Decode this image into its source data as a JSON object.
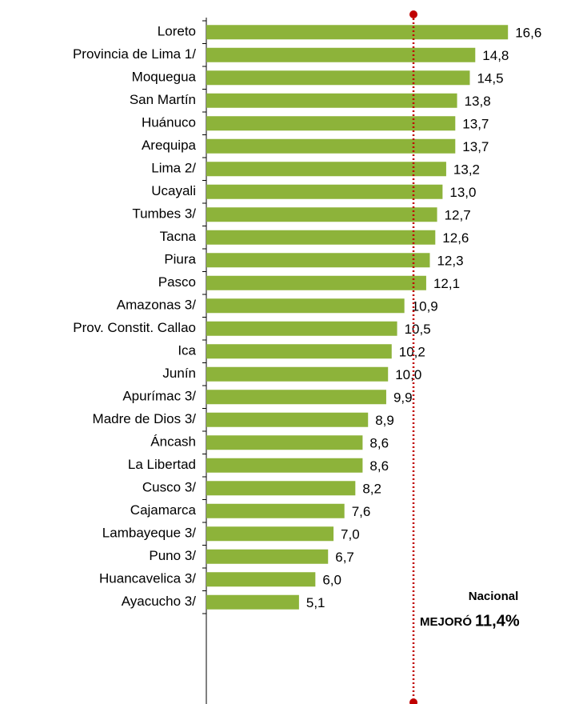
{
  "chart_data": {
    "type": "bar",
    "orientation": "horizontal",
    "categories": [
      "Loreto",
      "Provincia de Lima 1/",
      "Moquegua",
      "San Martín",
      "Huánuco",
      "Arequipa",
      "Lima 2/",
      "Ucayali",
      "Tumbes 3/",
      "Tacna",
      "Piura",
      "Pasco",
      "Amazonas 3/",
      "Prov. Constit. Callao",
      "Ica",
      "Junín",
      "Apurímac 3/",
      "Madre de Dios 3/",
      "Áncash",
      "La Libertad",
      "Cusco 3/",
      "Cajamarca",
      "Lambayeque 3/",
      "Puno 3/",
      "Huancavelica 3/",
      "Ayacucho 3/"
    ],
    "values": [
      16.6,
      14.8,
      14.5,
      13.8,
      13.7,
      13.7,
      13.2,
      13.0,
      12.7,
      12.6,
      12.3,
      12.1,
      10.9,
      10.5,
      10.2,
      10.0,
      9.9,
      8.9,
      8.6,
      8.6,
      8.2,
      7.6,
      7.0,
      6.7,
      6.0,
      5.1
    ],
    "value_labels": [
      "16,6",
      "14,8",
      "14,5",
      "13,8",
      "13,7",
      "13,7",
      "13,2",
      "13,0",
      "12,7",
      "12,6",
      "12,3",
      "12,1",
      "10,9",
      "10,5",
      "10,2",
      "10,0",
      "9,9",
      "8,9",
      "8,6",
      "8,6",
      "8,2",
      "7,6",
      "7,0",
      "6,7",
      "6,0",
      "5,1"
    ],
    "color": "#8db33a",
    "xlim": [
      0,
      18
    ],
    "reference": {
      "value": 11.4,
      "label": "11,4%",
      "title": "Nacional",
      "prefix": "MEJORÓ",
      "color": "#c00000"
    }
  }
}
